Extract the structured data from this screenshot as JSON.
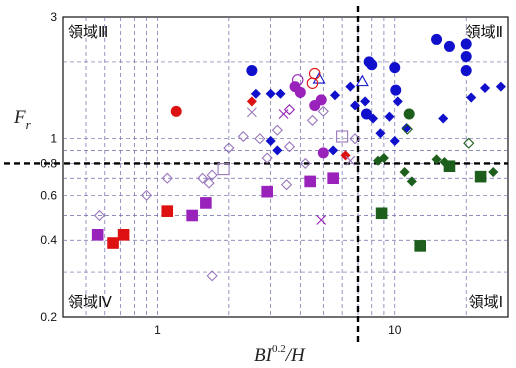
{
  "chart_data": {
    "type": "scatter",
    "x_scale": "log",
    "y_scale": "log",
    "xlim": [
      0.4,
      30
    ],
    "ylim": [
      0.2,
      3
    ],
    "grid": true,
    "xlabel_parts": {
      "main": "BI",
      "sup": "0.2",
      "tail": "/H"
    },
    "ylabel_parts": {
      "main": "F",
      "sub": "r"
    },
    "x_ticks": [
      {
        "value": 1,
        "label": "1"
      },
      {
        "value": 10,
        "label": "10"
      }
    ],
    "y_ticks": [
      {
        "value": 0.2,
        "label": "0.2"
      },
      {
        "value": 0.4,
        "label": "0.4"
      },
      {
        "value": 0.6,
        "label": "0.6"
      },
      {
        "value": 0.8,
        "label": "0.8"
      },
      {
        "value": 1,
        "label": "1"
      },
      {
        "value": 3,
        "label": "3"
      }
    ],
    "threshold_x": 7,
    "threshold_y": 0.8,
    "regions": [
      {
        "label": "領域Ⅲ",
        "corner": "top-left"
      },
      {
        "label": "領域Ⅱ",
        "corner": "top-right"
      },
      {
        "label": "領域Ⅳ",
        "corner": "bottom-left"
      },
      {
        "label": "領域Ⅰ",
        "corner": "bottom-right"
      }
    ],
    "series": [
      {
        "color": "#1010cc",
        "points": [
          {
            "x": 2.5,
            "y": 1.85,
            "marker": "circle",
            "filled": true
          },
          {
            "x": 8.0,
            "y": 1.95,
            "marker": "circle",
            "filled": true
          },
          {
            "x": 7.8,
            "y": 2.0,
            "marker": "circle",
            "filled": true
          },
          {
            "x": 10.0,
            "y": 1.9,
            "marker": "circle",
            "filled": true
          },
          {
            "x": 10.1,
            "y": 1.55,
            "marker": "circle",
            "filled": true
          },
          {
            "x": 15.0,
            "y": 2.45,
            "marker": "circle",
            "filled": true
          },
          {
            "x": 17.0,
            "y": 2.3,
            "marker": "circle",
            "filled": true
          },
          {
            "x": 20.0,
            "y": 2.35,
            "marker": "circle",
            "filled": true
          },
          {
            "x": 20.0,
            "y": 2.1,
            "marker": "circle",
            "filled": true
          },
          {
            "x": 20.0,
            "y": 1.85,
            "marker": "circle",
            "filled": true
          },
          {
            "x": 7.6,
            "y": 1.25,
            "marker": "circle",
            "filled": true
          },
          {
            "x": 2.6,
            "y": 1.5,
            "marker": "diamond",
            "filled": true
          },
          {
            "x": 3.0,
            "y": 1.5,
            "marker": "diamond",
            "filled": true
          },
          {
            "x": 3.3,
            "y": 1.5,
            "marker": "diamond",
            "filled": true
          },
          {
            "x": 4.0,
            "y": 1.5,
            "marker": "diamond",
            "filled": true
          },
          {
            "x": 5.6,
            "y": 1.48,
            "marker": "diamond",
            "filled": true
          },
          {
            "x": 6.5,
            "y": 1.6,
            "marker": "diamond",
            "filled": true
          },
          {
            "x": 6.8,
            "y": 1.35,
            "marker": "diamond",
            "filled": true
          },
          {
            "x": 7.5,
            "y": 1.4,
            "marker": "diamond",
            "filled": true
          },
          {
            "x": 8.1,
            "y": 1.2,
            "marker": "diamond",
            "filled": true
          },
          {
            "x": 9.5,
            "y": 1.22,
            "marker": "diamond",
            "filled": true
          },
          {
            "x": 8.7,
            "y": 1.05,
            "marker": "diamond",
            "filled": true
          },
          {
            "x": 10.0,
            "y": 0.98,
            "marker": "diamond",
            "filled": true
          },
          {
            "x": 10.3,
            "y": 1.4,
            "marker": "diamond",
            "filled": true
          },
          {
            "x": 11.2,
            "y": 1.1,
            "marker": "diamond",
            "filled": true
          },
          {
            "x": 3.0,
            "y": 0.98,
            "marker": "diamond",
            "filled": true
          },
          {
            "x": 3.2,
            "y": 0.9,
            "marker": "diamond",
            "filled": true
          },
          {
            "x": 5.5,
            "y": 0.9,
            "marker": "diamond",
            "filled": true
          },
          {
            "x": 16.0,
            "y": 1.2,
            "marker": "diamond",
            "filled": true
          },
          {
            "x": 21.0,
            "y": 1.45,
            "marker": "diamond",
            "filled": true
          },
          {
            "x": 24.0,
            "y": 1.58,
            "marker": "diamond",
            "filled": true
          },
          {
            "x": 28.0,
            "y": 1.6,
            "marker": "diamond",
            "filled": true
          },
          {
            "x": 7.3,
            "y": 1.68,
            "marker": "triangle",
            "filled": false
          },
          {
            "x": 4.8,
            "y": 1.72,
            "marker": "triangle",
            "filled": false
          }
        ]
      },
      {
        "color": "#dd1111",
        "points": [
          {
            "x": 1.2,
            "y": 1.28,
            "marker": "circle",
            "filled": true
          },
          {
            "x": 2.5,
            "y": 1.4,
            "marker": "diamond",
            "filled": true
          },
          {
            "x": 6.2,
            "y": 0.86,
            "marker": "diamond",
            "filled": true
          },
          {
            "x": 1.1,
            "y": 0.52,
            "marker": "square",
            "filled": true
          },
          {
            "x": 0.65,
            "y": 0.39,
            "marker": "square",
            "filled": true
          },
          {
            "x": 0.72,
            "y": 0.42,
            "marker": "square",
            "filled": true
          },
          {
            "x": 4.5,
            "y": 1.65,
            "marker": "circle",
            "filled": false
          },
          {
            "x": 4.6,
            "y": 1.8,
            "marker": "circle",
            "filled": false
          }
        ]
      },
      {
        "color": "#9922bb",
        "points": [
          {
            "x": 3.8,
            "y": 1.6,
            "marker": "circle",
            "filled": true
          },
          {
            "x": 4.0,
            "y": 1.52,
            "marker": "circle",
            "filled": true
          },
          {
            "x": 4.6,
            "y": 1.35,
            "marker": "circle",
            "filled": true
          },
          {
            "x": 4.9,
            "y": 1.42,
            "marker": "circle",
            "filled": true
          },
          {
            "x": 5.0,
            "y": 0.88,
            "marker": "circle",
            "filled": true
          },
          {
            "x": 0.56,
            "y": 0.42,
            "marker": "square",
            "filled": true
          },
          {
            "x": 1.4,
            "y": 0.5,
            "marker": "square",
            "filled": true
          },
          {
            "x": 1.6,
            "y": 0.56,
            "marker": "square",
            "filled": true
          },
          {
            "x": 2.9,
            "y": 0.62,
            "marker": "square",
            "filled": true
          },
          {
            "x": 4.4,
            "y": 0.68,
            "marker": "square",
            "filled": true
          },
          {
            "x": 5.5,
            "y": 0.7,
            "marker": "square",
            "filled": true
          },
          {
            "x": 4.9,
            "y": 0.48,
            "marker": "cross",
            "filled": false
          },
          {
            "x": 3.4,
            "y": 1.25,
            "marker": "cross",
            "filled": false
          },
          {
            "x": 3.9,
            "y": 1.7,
            "marker": "circle",
            "filled": false
          },
          {
            "x": 3.6,
            "y": 1.3,
            "marker": "diamond",
            "filled": false
          }
        ]
      },
      {
        "color": "#9977bb",
        "points": [
          {
            "x": 0.57,
            "y": 0.5,
            "marker": "diamond",
            "filled": false
          },
          {
            "x": 0.9,
            "y": 0.6,
            "marker": "diamond",
            "filled": false
          },
          {
            "x": 1.1,
            "y": 0.7,
            "marker": "diamond",
            "filled": false
          },
          {
            "x": 1.55,
            "y": 0.7,
            "marker": "diamond",
            "filled": false
          },
          {
            "x": 1.7,
            "y": 0.72,
            "marker": "diamond",
            "filled": false
          },
          {
            "x": 1.65,
            "y": 0.67,
            "marker": "diamond",
            "filled": false
          },
          {
            "x": 2.0,
            "y": 0.92,
            "marker": "diamond",
            "filled": false
          },
          {
            "x": 2.3,
            "y": 1.02,
            "marker": "diamond",
            "filled": false
          },
          {
            "x": 2.7,
            "y": 1.0,
            "marker": "diamond",
            "filled": false
          },
          {
            "x": 3.2,
            "y": 1.08,
            "marker": "diamond",
            "filled": false
          },
          {
            "x": 3.6,
            "y": 0.93,
            "marker": "diamond",
            "filled": false
          },
          {
            "x": 4.2,
            "y": 0.8,
            "marker": "diamond",
            "filled": false
          },
          {
            "x": 2.9,
            "y": 0.84,
            "marker": "diamond",
            "filled": false
          },
          {
            "x": 3.5,
            "y": 0.66,
            "marker": "diamond",
            "filled": false
          },
          {
            "x": 1.9,
            "y": 0.76,
            "marker": "square",
            "filled": false
          },
          {
            "x": 1.7,
            "y": 0.29,
            "marker": "diamond",
            "filled": false
          },
          {
            "x": 2.5,
            "y": 1.27,
            "marker": "cross",
            "filled": false
          },
          {
            "x": 5.0,
            "y": 1.28,
            "marker": "diamond",
            "filled": false
          },
          {
            "x": 6.8,
            "y": 1.0,
            "marker": "diamond",
            "filled": false
          },
          {
            "x": 6.5,
            "y": 0.82,
            "marker": "cross",
            "filled": false
          },
          {
            "x": 4.5,
            "y": 1.18,
            "marker": "diamond",
            "filled": false
          },
          {
            "x": 6.0,
            "y": 1.02,
            "marker": "square",
            "filled": false
          }
        ]
      },
      {
        "color": "#1d5e1d",
        "points": [
          {
            "x": 11.5,
            "y": 1.25,
            "marker": "circle",
            "filled": true
          },
          {
            "x": 8.5,
            "y": 0.82,
            "marker": "diamond",
            "filled": true
          },
          {
            "x": 9.0,
            "y": 0.84,
            "marker": "diamond",
            "filled": true
          },
          {
            "x": 11.0,
            "y": 0.74,
            "marker": "diamond",
            "filled": true
          },
          {
            "x": 11.8,
            "y": 0.68,
            "marker": "diamond",
            "filled": true
          },
          {
            "x": 15.0,
            "y": 0.83,
            "marker": "diamond",
            "filled": true
          },
          {
            "x": 16.2,
            "y": 0.81,
            "marker": "diamond",
            "filled": true
          },
          {
            "x": 26.0,
            "y": 0.74,
            "marker": "diamond",
            "filled": true
          },
          {
            "x": 17.0,
            "y": 0.78,
            "marker": "square",
            "filled": true
          },
          {
            "x": 23.0,
            "y": 0.71,
            "marker": "square",
            "filled": true
          },
          {
            "x": 8.8,
            "y": 0.51,
            "marker": "square",
            "filled": true
          },
          {
            "x": 12.8,
            "y": 0.38,
            "marker": "square",
            "filled": true
          },
          {
            "x": 11.3,
            "y": 1.09,
            "marker": "diamond",
            "filled": false
          },
          {
            "x": 20.5,
            "y": 0.96,
            "marker": "diamond",
            "filled": false
          }
        ]
      }
    ]
  }
}
